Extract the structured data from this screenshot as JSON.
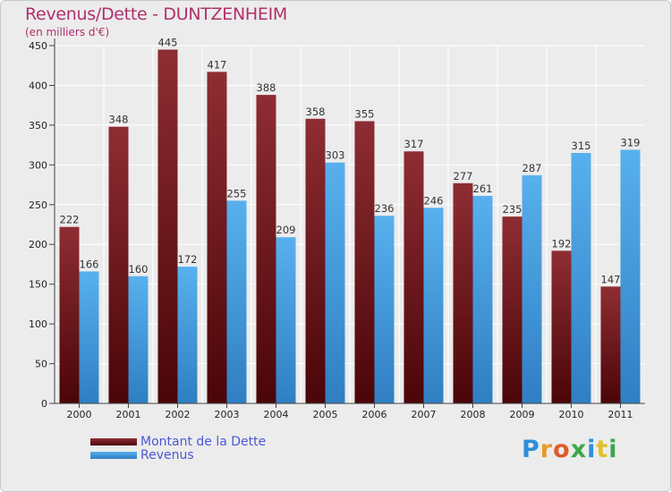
{
  "title": "Revenus/Dette - DUNTZENHEIM",
  "subtitle": "(en milliers d'€)",
  "logo": "Proxiti",
  "colors": {
    "debt": "#7a1f24",
    "revenue": "#4ea6e6",
    "title": "#b0306a",
    "legend_text": "#4a57d8"
  },
  "legend": [
    {
      "label": "Montant de la Dette",
      "color": "#5a0e12"
    },
    {
      "label": "Revenus",
      "color": "#4ea6e6"
    }
  ],
  "chart_data": {
    "type": "bar",
    "title": "Revenus/Dette - DUNTZENHEIM",
    "ylabel": "(en milliers d'€)",
    "xlabel": "",
    "categories": [
      "2000",
      "2001",
      "2002",
      "2003",
      "2004",
      "2005",
      "2006",
      "2007",
      "2008",
      "2009",
      "2010",
      "2011"
    ],
    "series": [
      {
        "name": "Montant de la Dette",
        "values": [
          222,
          348,
          445,
          417,
          388,
          358,
          355,
          317,
          277,
          235,
          192,
          147
        ]
      },
      {
        "name": "Revenus",
        "values": [
          166,
          160,
          172,
          255,
          209,
          303,
          236,
          246,
          261,
          287,
          315,
          319
        ]
      }
    ],
    "ylim": [
      0,
      450
    ],
    "yticks": [
      0,
      50,
      100,
      150,
      200,
      250,
      300,
      350,
      400,
      450
    ],
    "grid": true,
    "legend_position": "bottom-left"
  }
}
